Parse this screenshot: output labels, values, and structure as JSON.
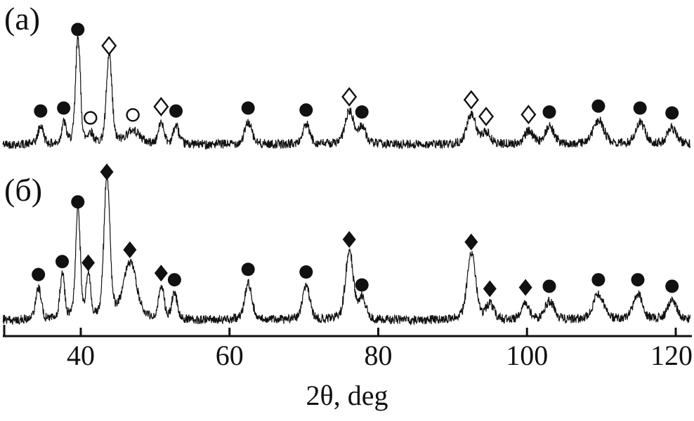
{
  "figure": {
    "background": "#ffffff",
    "ink_color": "#111111"
  },
  "chart_data": [
    {
      "type": "line",
      "panel_label": "(a)",
      "xlabel": "2θ, deg",
      "x_range": [
        30,
        121.5
      ],
      "x_ticks": [
        40,
        60,
        80,
        100,
        120
      ],
      "y_axis_shown": false,
      "legend_position": "none",
      "grid": false,
      "marker_types": [
        "filled-circle",
        "open-circle",
        "open-diamond"
      ],
      "peaks": [
        {
          "two_theta": 34.6,
          "rel_intensity": 0.17,
          "marker": "filled-circle",
          "width_deg": 0.35
        },
        {
          "two_theta": 37.7,
          "rel_intensity": 0.2,
          "marker": "filled-circle",
          "width_deg": 0.3
        },
        {
          "two_theta": 39.6,
          "rel_intensity": 1.0,
          "marker": "filled-circle",
          "width_deg": 0.3
        },
        {
          "two_theta": 41.3,
          "rel_intensity": 0.1,
          "marker": "open-circle",
          "width_deg": 0.35
        },
        {
          "two_theta": 43.8,
          "rel_intensity": 0.82,
          "marker": "open-diamond",
          "width_deg": 0.35
        },
        {
          "two_theta": 47.0,
          "rel_intensity": 0.13,
          "marker": "open-circle",
          "width_deg": 0.9
        },
        {
          "two_theta": 50.8,
          "rel_intensity": 0.2,
          "marker": "open-diamond",
          "width_deg": 0.35
        },
        {
          "two_theta": 52.8,
          "rel_intensity": 0.17,
          "marker": "filled-circle",
          "width_deg": 0.35
        },
        {
          "two_theta": 62.5,
          "rel_intensity": 0.2,
          "marker": "filled-circle",
          "width_deg": 0.45
        },
        {
          "two_theta": 70.3,
          "rel_intensity": 0.18,
          "marker": "filled-circle",
          "width_deg": 0.45
        },
        {
          "two_theta": 76.1,
          "rel_intensity": 0.3,
          "marker": "open-diamond",
          "width_deg": 0.55
        },
        {
          "two_theta": 77.8,
          "rel_intensity": 0.16,
          "marker": "filled-circle",
          "width_deg": 0.45
        },
        {
          "two_theta": 92.5,
          "rel_intensity": 0.27,
          "marker": "open-diamond",
          "width_deg": 0.6
        },
        {
          "two_theta": 94.5,
          "rel_intensity": 0.1,
          "marker": "open-diamond",
          "width_deg": 0.5
        },
        {
          "two_theta": 100.2,
          "rel_intensity": 0.12,
          "marker": "open-diamond",
          "width_deg": 0.55
        },
        {
          "two_theta": 103.0,
          "rel_intensity": 0.16,
          "marker": "filled-circle",
          "width_deg": 0.6
        },
        {
          "two_theta": 109.6,
          "rel_intensity": 0.22,
          "marker": "filled-circle",
          "width_deg": 0.7
        },
        {
          "two_theta": 115.2,
          "rel_intensity": 0.2,
          "marker": "filled-circle",
          "width_deg": 0.6
        },
        {
          "two_theta": 119.5,
          "rel_intensity": 0.15,
          "marker": "filled-circle",
          "width_deg": 0.6
        }
      ]
    },
    {
      "type": "line",
      "panel_label": "(б)",
      "xlabel": "2θ, deg",
      "x_range": [
        30,
        121.5
      ],
      "x_ticks": [
        40,
        60,
        80,
        100,
        120
      ],
      "y_axis_shown": false,
      "legend_position": "none",
      "grid": false,
      "marker_types": [
        "filled-circle",
        "filled-diamond"
      ],
      "peaks": [
        {
          "two_theta": 34.3,
          "rel_intensity": 0.22,
          "marker": "filled-circle",
          "width_deg": 0.35
        },
        {
          "two_theta": 37.5,
          "rel_intensity": 0.32,
          "marker": "filled-circle",
          "width_deg": 0.3
        },
        {
          "two_theta": 39.6,
          "rel_intensity": 0.78,
          "marker": "filled-circle",
          "width_deg": 0.3
        },
        {
          "two_theta": 41.0,
          "rel_intensity": 0.3,
          "marker": "filled-diamond",
          "width_deg": 0.3
        },
        {
          "two_theta": 43.5,
          "rel_intensity": 1.0,
          "marker": "filled-diamond",
          "width_deg": 0.38
        },
        {
          "two_theta": 46.6,
          "rel_intensity": 0.4,
          "marker": "filled-diamond",
          "width_deg": 0.85
        },
        {
          "two_theta": 50.8,
          "rel_intensity": 0.22,
          "marker": "filled-diamond",
          "width_deg": 0.35
        },
        {
          "two_theta": 52.6,
          "rel_intensity": 0.18,
          "marker": "filled-circle",
          "width_deg": 0.35
        },
        {
          "two_theta": 62.5,
          "rel_intensity": 0.26,
          "marker": "filled-circle",
          "width_deg": 0.45
        },
        {
          "two_theta": 70.3,
          "rel_intensity": 0.24,
          "marker": "filled-circle",
          "width_deg": 0.45
        },
        {
          "two_theta": 76.1,
          "rel_intensity": 0.48,
          "marker": "filled-diamond",
          "width_deg": 0.5
        },
        {
          "two_theta": 77.8,
          "rel_intensity": 0.14,
          "marker": "filled-circle",
          "width_deg": 0.45
        },
        {
          "two_theta": 92.5,
          "rel_intensity": 0.46,
          "marker": "filled-diamond",
          "width_deg": 0.55
        },
        {
          "two_theta": 95.0,
          "rel_intensity": 0.1,
          "marker": "filled-diamond",
          "width_deg": 0.5
        },
        {
          "two_theta": 99.8,
          "rel_intensity": 0.11,
          "marker": "filled-diamond",
          "width_deg": 0.5
        },
        {
          "two_theta": 103.0,
          "rel_intensity": 0.13,
          "marker": "filled-circle",
          "width_deg": 0.6
        },
        {
          "two_theta": 109.6,
          "rel_intensity": 0.18,
          "marker": "filled-circle",
          "width_deg": 0.7
        },
        {
          "two_theta": 114.9,
          "rel_intensity": 0.18,
          "marker": "filled-circle",
          "width_deg": 0.6
        },
        {
          "two_theta": 119.5,
          "rel_intensity": 0.13,
          "marker": "filled-circle",
          "width_deg": 0.6
        }
      ]
    }
  ]
}
